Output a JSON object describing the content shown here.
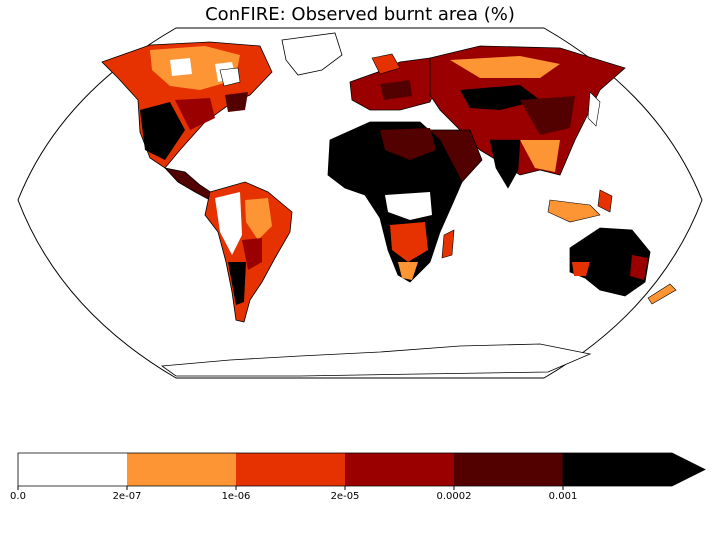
{
  "title": "ConFIRE: Observed burnt area (%)",
  "colorbar": {
    "bins": [
      {
        "lower": "0.0",
        "color": "#ffffff"
      },
      {
        "lower": "2e-07",
        "color": "#fd9535"
      },
      {
        "lower": "1e-06",
        "color": "#e53200"
      },
      {
        "lower": "2e-05",
        "color": "#9a0000"
      },
      {
        "lower": "0.0002",
        "color": "#520000"
      },
      {
        "lower": "0.001",
        "color": "#000000"
      }
    ],
    "extend": "max",
    "ticks": [
      "0.0",
      "2e-07",
      "1e-06",
      "2e-05",
      "0.0002",
      "0.001"
    ]
  },
  "colors": {
    "outline": "#000000",
    "background": "#ffffff"
  }
}
